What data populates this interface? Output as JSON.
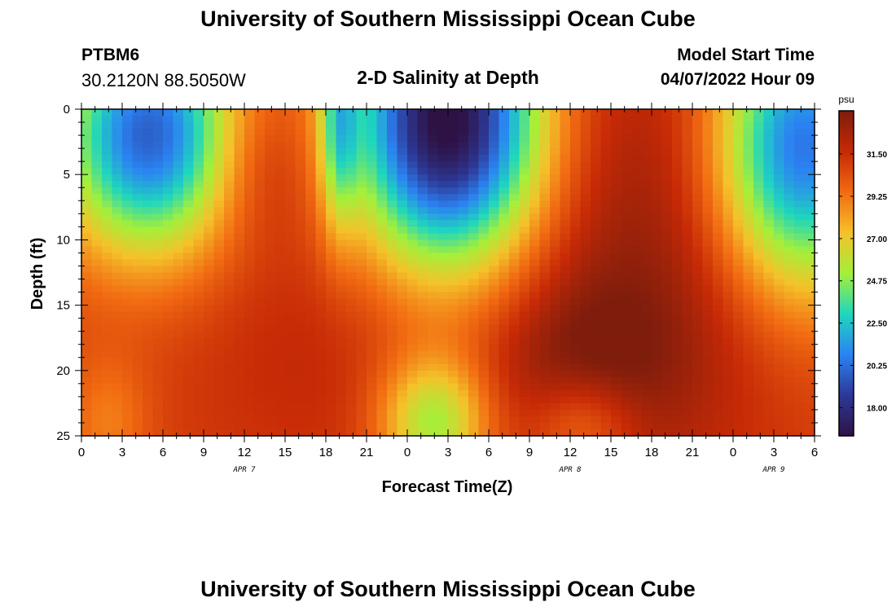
{
  "header": {
    "title": "University of Southern Mississippi Ocean Cube",
    "station": "PTBM6",
    "coords": "30.2120N  88.5050W",
    "chart_title": "2-D Salinity at Depth",
    "model_label": "Model Start Time",
    "model_date": "04/07/2022 Hour 09"
  },
  "footer": {
    "title": "University of Southern Mississippi Ocean Cube"
  },
  "chart_data": {
    "type": "heatmap",
    "title": "2-D Salinity at Depth",
    "xlabel": "Forecast Time(Z)",
    "ylabel": "Depth (ft)",
    "x_hours_range": [
      0,
      54
    ],
    "y_range": [
      0,
      25
    ],
    "y_ticks": [
      "0",
      "5",
      "10",
      "15",
      "20",
      "25"
    ],
    "x_ticks": [
      "0",
      "3",
      "6",
      "9",
      "12",
      "15",
      "18",
      "21",
      "0",
      "3",
      "6",
      "9",
      "12",
      "15",
      "18",
      "21",
      "0",
      "3",
      "6"
    ],
    "date_labels": [
      {
        "label": "APR 7",
        "hour": 12
      },
      {
        "label": "APR 8",
        "hour": 36
      },
      {
        "label": "APR 9",
        "hour": 51
      }
    ],
    "colorbar": {
      "unit": "psu",
      "range": [
        16.5,
        33.8
      ],
      "ticks": [
        "18.00",
        "20.25",
        "22.50",
        "24.75",
        "27.00",
        "29.25",
        "31.50"
      ],
      "colors": [
        "#2e1245",
        "#2d3896",
        "#2b82f2",
        "#1ed6be",
        "#a4f03a",
        "#f4c22a",
        "#f26c12",
        "#c72a06",
        "#7f1d0c"
      ]
    },
    "grid": false
  }
}
